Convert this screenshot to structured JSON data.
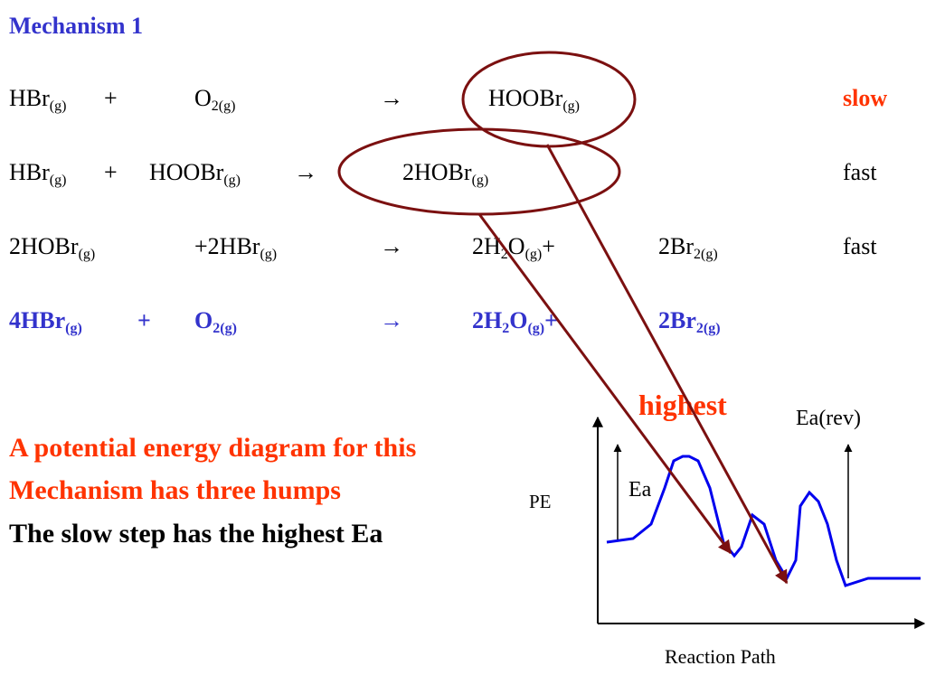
{
  "title": "Mechanism 1",
  "reactions": [
    {
      "cells": [
        [
          {
            "text": "HBr"
          },
          {
            "sub": "(g)"
          }
        ],
        [
          {
            "text": "+"
          }
        ],
        [
          {
            "text": "O"
          },
          {
            "sub": "2(g)"
          }
        ],
        [
          {
            "text": "→"
          }
        ],
        [
          {
            "text": "HOOBr"
          },
          {
            "sub": "(g)"
          }
        ]
      ],
      "rate": "slow"
    },
    {
      "cells": [
        [
          {
            "text": "HBr"
          },
          {
            "sub": "(g)"
          }
        ],
        [
          {
            "text": "+"
          }
        ],
        [
          {
            "text": "HOOBr"
          },
          {
            "sub": "(g)"
          }
        ],
        [
          {
            "text": "→"
          }
        ],
        [
          {
            "text": "2HOBr"
          },
          {
            "sub": "(g)"
          }
        ]
      ],
      "rate": "fast"
    },
    {
      "cells": [
        [
          {
            "text": "2HOBr"
          },
          {
            "sub": "(g)"
          }
        ],
        [
          {
            "text": "+2HBr"
          },
          {
            "sub": "(g)"
          }
        ],
        [
          {
            "text": "→"
          }
        ],
        [
          {
            "text": "2H"
          },
          {
            "sub": "2"
          },
          {
            "text": "O"
          },
          {
            "sub": "(g)"
          },
          {
            "text": "+"
          }
        ],
        [
          {
            "text": "2Br"
          },
          {
            "sub": "2(g)"
          }
        ]
      ],
      "rate": "fast"
    },
    {
      "cells": [
        [
          {
            "text": "4HBr"
          },
          {
            "sub": "(g)"
          }
        ],
        [
          {
            "text": "+"
          }
        ],
        [
          {
            "text": "O"
          },
          {
            "sub": "2(g)"
          }
        ],
        [
          {
            "text": "→"
          }
        ],
        [
          {
            "text": "2H"
          },
          {
            "sub": "2"
          },
          {
            "text": "O"
          },
          {
            "sub": "(g)"
          },
          {
            "text": "+"
          }
        ],
        [
          {
            "text": "2Br"
          },
          {
            "sub": "2(g)"
          }
        ]
      ]
    }
  ],
  "notes": [
    "A potential energy diagram for this",
    "Mechanism has three humps",
    "The slow step has the highest Ea"
  ],
  "diagram": {
    "highest": "highest",
    "ea_rev": "Ea(rev)",
    "ea": "Ea",
    "y_label": "PE",
    "x_label": "Reaction Path"
  }
}
